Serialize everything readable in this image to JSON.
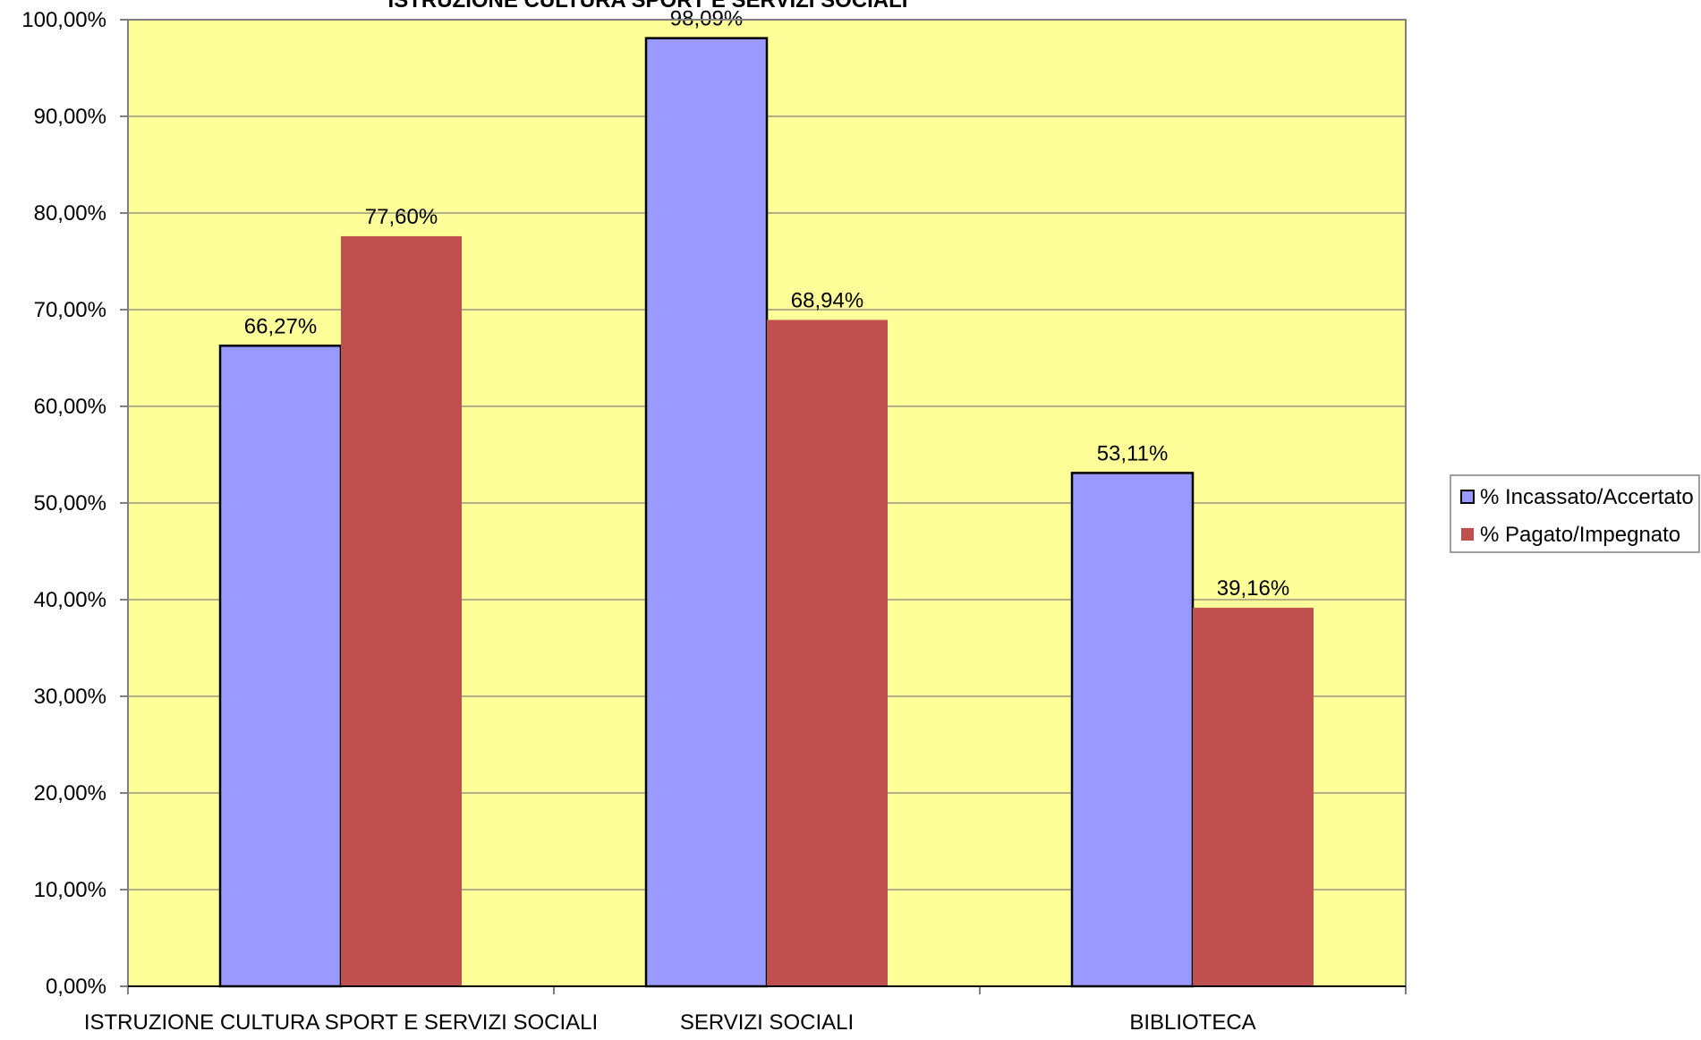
{
  "chart_data": {
    "type": "bar",
    "title": "ISTRUZIONE CULTURA SPORT E SERVIZI SOCIALI",
    "categories": [
      "ISTRUZIONE CULTURA SPORT E SERVIZI SOCIALI",
      "SERVIZI SOCIALI",
      "BIBLIOTECA"
    ],
    "series": [
      {
        "name": "% Incassato/Accertato",
        "values": [
          66.27,
          98.09,
          53.11
        ],
        "labels": [
          "66,27%",
          "98,09%",
          "53,11%"
        ],
        "color": "#9999FF"
      },
      {
        "name": "% Pagato/Impegnato",
        "values": [
          77.6,
          68.94,
          39.16
        ],
        "labels": [
          "77,60%",
          "68,94%",
          "39,16%"
        ],
        "color": "#C0504D"
      }
    ],
    "ylim": [
      0,
      100
    ],
    "yticks": [
      0,
      10,
      20,
      30,
      40,
      50,
      60,
      70,
      80,
      90,
      100
    ],
    "ytick_labels": [
      "0,00%",
      "10,00%",
      "20,00%",
      "30,00%",
      "40,00%",
      "50,00%",
      "60,00%",
      "70,00%",
      "80,00%",
      "90,00%",
      "100,00%"
    ],
    "xlabel": "",
    "ylabel": "",
    "grid": true,
    "legend": "right",
    "plot_background": "#FFFF99"
  }
}
